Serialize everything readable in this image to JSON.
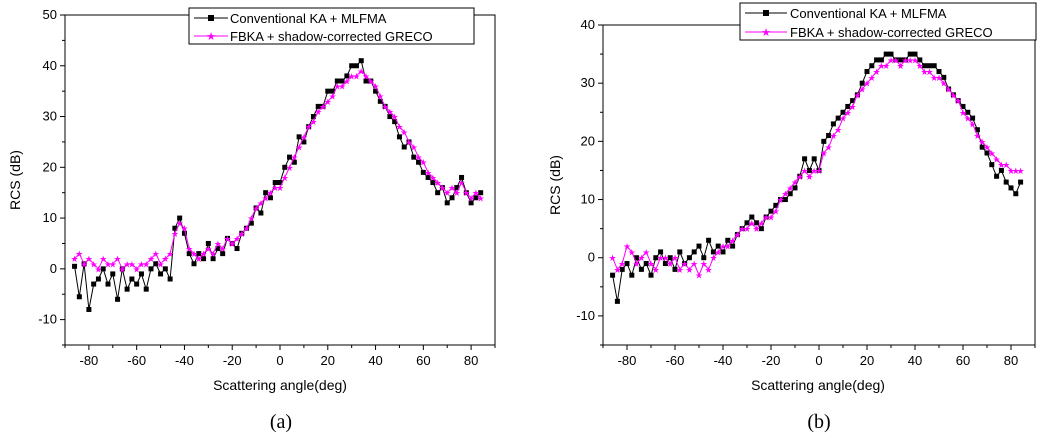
{
  "chart_data": [
    {
      "type": "line",
      "caption": "(a)",
      "xlabel": "Scattering angle(deg)",
      "ylabel": "RCS (dB)",
      "xlim": [
        -90,
        90
      ],
      "ylim": [
        -15,
        50
      ],
      "xticks": [
        -80,
        -60,
        -40,
        -20,
        0,
        20,
        40,
        60,
        80
      ],
      "yticks": [
        -10,
        0,
        10,
        20,
        30,
        40,
        50
      ],
      "legend_position": "top-right",
      "series": [
        {
          "name": "Conventional KA + MLFMA",
          "color": "#000000",
          "marker": "square",
          "x": [
            -86,
            -84,
            -82,
            -80,
            -78,
            -76,
            -74,
            -72,
            -70,
            -68,
            -66,
            -64,
            -62,
            -60,
            -58,
            -56,
            -54,
            -52,
            -50,
            -48,
            -46,
            -44,
            -42,
            -40,
            -38,
            -36,
            -34,
            -32,
            -30,
            -28,
            -26,
            -24,
            -22,
            -20,
            -18,
            -16,
            -14,
            -12,
            -10,
            -8,
            -6,
            -4,
            -2,
            0,
            2,
            4,
            6,
            8,
            10,
            12,
            14,
            16,
            18,
            20,
            22,
            24,
            26,
            28,
            30,
            32,
            34,
            36,
            38,
            40,
            42,
            44,
            46,
            48,
            50,
            52,
            54,
            56,
            58,
            60,
            62,
            64,
            66,
            68,
            70,
            72,
            74,
            76,
            78,
            80,
            82,
            84
          ],
          "values": [
            0.5,
            -5.5,
            1,
            -8,
            -3,
            -2,
            0,
            -3,
            -1,
            -6,
            0,
            -4,
            -2,
            -3,
            -1,
            -4,
            0,
            1,
            -1,
            0,
            -2,
            8,
            10,
            7,
            3,
            1,
            3,
            2,
            5,
            2,
            4,
            3,
            6,
            5,
            4,
            7,
            8,
            9,
            12,
            11,
            15,
            14,
            17,
            17,
            20,
            22,
            21,
            26,
            25,
            28,
            30,
            32,
            32,
            35,
            35,
            37,
            37,
            38,
            40,
            40,
            41,
            37,
            37,
            35,
            33,
            32,
            30,
            29,
            26,
            24,
            25,
            22,
            21,
            19,
            18,
            17,
            15,
            16,
            13,
            14,
            16,
            18,
            15,
            13,
            14,
            15
          ]
        },
        {
          "name": "FBKA + shadow-corrected GRECO",
          "color": "#ff00ff",
          "marker": "star",
          "x": [
            -86,
            -84,
            -82,
            -80,
            -78,
            -76,
            -74,
            -72,
            -70,
            -68,
            -66,
            -64,
            -62,
            -60,
            -58,
            -56,
            -54,
            -52,
            -50,
            -48,
            -46,
            -44,
            -42,
            -40,
            -38,
            -36,
            -34,
            -32,
            -30,
            -28,
            -26,
            -24,
            -22,
            -20,
            -18,
            -16,
            -14,
            -12,
            -10,
            -8,
            -6,
            -4,
            -2,
            0,
            2,
            4,
            6,
            8,
            10,
            12,
            14,
            16,
            18,
            20,
            22,
            24,
            26,
            28,
            30,
            32,
            34,
            36,
            38,
            40,
            42,
            44,
            46,
            48,
            50,
            52,
            54,
            56,
            58,
            60,
            62,
            64,
            66,
            68,
            70,
            72,
            74,
            76,
            78,
            80,
            82,
            84
          ],
          "values": [
            2,
            3,
            1,
            2,
            1,
            0,
            2,
            1,
            1,
            2,
            0,
            1,
            1,
            0,
            1,
            1,
            2,
            3,
            1,
            2,
            3,
            7,
            9,
            8,
            4,
            3,
            2,
            3,
            4,
            3,
            5,
            4,
            6,
            5,
            6,
            7,
            8,
            10,
            12,
            13,
            14,
            15,
            16,
            16,
            18,
            20,
            22,
            24,
            26,
            28,
            29,
            31,
            32,
            33,
            34,
            36,
            36,
            37,
            38,
            38,
            39,
            38,
            37,
            36,
            34,
            32,
            31,
            30,
            28,
            27,
            25,
            24,
            22,
            21,
            19,
            18,
            17,
            16,
            15,
            16,
            15,
            17,
            15,
            14,
            15,
            14
          ]
        }
      ]
    },
    {
      "type": "line",
      "caption": "(b)",
      "xlabel": "Scattering angle(deg)",
      "ylabel": "RCS (dB)",
      "xlim": [
        -90,
        90
      ],
      "ylim": [
        -15,
        40
      ],
      "xticks": [
        -80,
        -60,
        -40,
        -20,
        0,
        20,
        40,
        60,
        80
      ],
      "yticks": [
        -10,
        0,
        10,
        20,
        30,
        40
      ],
      "legend_position": "top-right",
      "series": [
        {
          "name": "Conventional KA + MLFMA",
          "color": "#000000",
          "marker": "square",
          "x": [
            -86,
            -84,
            -82,
            -80,
            -78,
            -76,
            -74,
            -72,
            -70,
            -68,
            -66,
            -64,
            -62,
            -60,
            -58,
            -56,
            -54,
            -52,
            -50,
            -48,
            -46,
            -44,
            -42,
            -40,
            -38,
            -36,
            -34,
            -32,
            -30,
            -28,
            -26,
            -24,
            -22,
            -20,
            -18,
            -16,
            -14,
            -12,
            -10,
            -8,
            -6,
            -4,
            -2,
            0,
            2,
            4,
            6,
            8,
            10,
            12,
            14,
            16,
            18,
            20,
            22,
            24,
            26,
            28,
            30,
            32,
            34,
            36,
            38,
            40,
            42,
            44,
            46,
            48,
            50,
            52,
            54,
            56,
            58,
            60,
            62,
            64,
            66,
            68,
            70,
            72,
            74,
            76,
            78,
            80,
            82,
            84
          ],
          "values": [
            -3,
            -7.5,
            -2,
            -1,
            -3,
            0,
            -2,
            -1,
            -3,
            0,
            1,
            -1,
            0,
            -2,
            1,
            -1,
            0,
            1,
            2,
            0,
            3,
            1,
            2,
            1,
            3,
            2,
            4,
            5,
            6,
            7,
            6,
            5,
            7,
            8,
            9,
            10,
            10,
            11,
            12,
            14,
            17,
            15,
            17,
            15,
            20,
            21,
            23,
            24,
            25,
            26,
            27,
            28,
            30,
            32,
            33,
            34,
            34,
            35,
            35,
            34,
            34,
            34,
            35,
            35,
            34,
            33,
            33,
            33,
            32,
            31,
            29,
            28,
            27,
            26,
            25,
            24,
            22,
            19,
            18,
            16,
            14,
            15,
            13,
            12,
            11,
            13
          ]
        },
        {
          "name": "FBKA + shadow-corrected GRECO",
          "color": "#ff00ff",
          "marker": "star",
          "x": [
            -86,
            -84,
            -82,
            -80,
            -78,
            -76,
            -74,
            -72,
            -70,
            -68,
            -66,
            -64,
            -62,
            -60,
            -58,
            -56,
            -54,
            -52,
            -50,
            -48,
            -46,
            -44,
            -42,
            -40,
            -38,
            -36,
            -34,
            -32,
            -30,
            -28,
            -26,
            -24,
            -22,
            -20,
            -18,
            -16,
            -14,
            -12,
            -10,
            -8,
            -6,
            -4,
            -2,
            0,
            2,
            4,
            6,
            8,
            10,
            12,
            14,
            16,
            18,
            20,
            22,
            24,
            26,
            28,
            30,
            32,
            34,
            36,
            38,
            40,
            42,
            44,
            46,
            48,
            50,
            52,
            54,
            56,
            58,
            60,
            62,
            64,
            66,
            68,
            70,
            72,
            74,
            76,
            78,
            80,
            82,
            84
          ],
          "values": [
            0,
            -2,
            -1,
            2,
            1,
            -1,
            0,
            1,
            -1,
            -2,
            0,
            0,
            -1,
            0,
            -2,
            -1,
            -2,
            -1,
            -3,
            -1,
            -2,
            0,
            1,
            2,
            2,
            3,
            4,
            5,
            5,
            6,
            5,
            6,
            7,
            7,
            8,
            10,
            11,
            12,
            13,
            14,
            15,
            14,
            15,
            15,
            18,
            19,
            21,
            22,
            24,
            25,
            26,
            28,
            29,
            30,
            31,
            32,
            33,
            33,
            34,
            34,
            33,
            34,
            34,
            34,
            33,
            32,
            32,
            31,
            31,
            30,
            29,
            28,
            27,
            25,
            24,
            23,
            21,
            20,
            19,
            18,
            17,
            16,
            16,
            15,
            15,
            15
          ]
        }
      ]
    }
  ]
}
